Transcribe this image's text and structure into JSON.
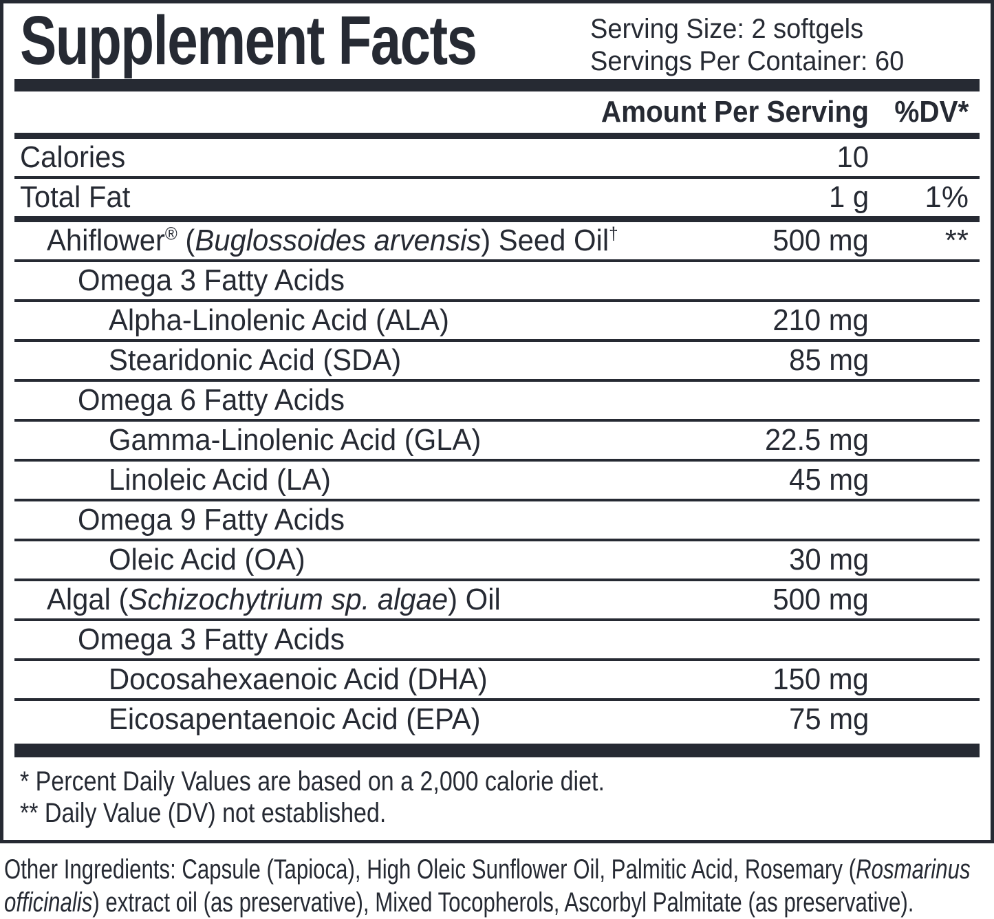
{
  "header": {
    "title": "Supplement Facts",
    "serving_size": "Serving Size: 2 softgels",
    "servings_per_container": "Servings Per Container: 60"
  },
  "columns": {
    "amount": "Amount Per Serving",
    "dv": "%DV*"
  },
  "rows": [
    {
      "indent": 0,
      "sep": "medium",
      "label": [
        {
          "t": "Calories"
        }
      ],
      "amount": "10",
      "dv": ""
    },
    {
      "indent": 0,
      "sep": "thin",
      "label": [
        {
          "t": "Total Fat"
        }
      ],
      "amount": "1 g",
      "dv": "1%"
    },
    {
      "indent": 1,
      "sep": "medium",
      "label": [
        {
          "t": "Ahiflower"
        },
        {
          "t": "®",
          "s": "sup"
        },
        {
          "t": " ("
        },
        {
          "t": "Buglossoides arvensis",
          "s": "i"
        },
        {
          "t": ") Seed Oil"
        },
        {
          "t": "†",
          "s": "sup"
        }
      ],
      "amount": "500 mg",
      "dv": "**"
    },
    {
      "indent": 2,
      "sep": "thin",
      "label": [
        {
          "t": "Omega 3 Fatty Acids"
        }
      ],
      "amount": "",
      "dv": ""
    },
    {
      "indent": 3,
      "sep": "thin",
      "label": [
        {
          "t": "Alpha-Linolenic Acid (ALA)"
        }
      ],
      "amount": "210 mg",
      "dv": ""
    },
    {
      "indent": 3,
      "sep": "thin",
      "label": [
        {
          "t": "Stearidonic Acid (SDA)"
        }
      ],
      "amount": "85 mg",
      "dv": ""
    },
    {
      "indent": 2,
      "sep": "thin",
      "label": [
        {
          "t": "Omega 6 Fatty Acids"
        }
      ],
      "amount": "",
      "dv": ""
    },
    {
      "indent": 3,
      "sep": "thin",
      "label": [
        {
          "t": "Gamma-Linolenic Acid (GLA)"
        }
      ],
      "amount": "22.5 mg",
      "dv": ""
    },
    {
      "indent": 3,
      "sep": "thin",
      "label": [
        {
          "t": "Linoleic Acid (LA)"
        }
      ],
      "amount": "45 mg",
      "dv": ""
    },
    {
      "indent": 2,
      "sep": "thin",
      "label": [
        {
          "t": "Omega 9 Fatty Acids"
        }
      ],
      "amount": "",
      "dv": ""
    },
    {
      "indent": 3,
      "sep": "thin",
      "label": [
        {
          "t": "Oleic Acid (OA)"
        }
      ],
      "amount": "30 mg",
      "dv": ""
    },
    {
      "indent": 1,
      "sep": "thin",
      "label": [
        {
          "t": "Algal ("
        },
        {
          "t": "Schizochytrium sp. algae",
          "s": "i"
        },
        {
          "t": ") Oil"
        }
      ],
      "amount": "500 mg",
      "dv": ""
    },
    {
      "indent": 2,
      "sep": "thin",
      "label": [
        {
          "t": "Omega 3 Fatty Acids"
        }
      ],
      "amount": "",
      "dv": ""
    },
    {
      "indent": 3,
      "sep": "thin",
      "label": [
        {
          "t": "Docosahexaenoic Acid (DHA)"
        }
      ],
      "amount": "150 mg",
      "dv": ""
    },
    {
      "indent": 3,
      "sep": "thin",
      "label": [
        {
          "t": "Eicosapentaenoic Acid (EPA)"
        }
      ],
      "amount": "75 mg",
      "dv": ""
    }
  ],
  "footnotes": [
    "* Percent Daily Values are based on a 2,000 calorie diet.",
    "** Daily Value (DV) not established."
  ],
  "other_ingredients": {
    "lines": [
      [
        {
          "t": "Other Ingredients: Capsule (Tapioca), High Oleic Sunflower Oil, Palmitic Acid, Rosemary ("
        },
        {
          "t": "Rosmarinus",
          "s": "i"
        }
      ],
      [
        {
          "t": "officinalis",
          "s": "i"
        },
        {
          "t": ") extract oil (as preservative), Mixed Tocopherols, Ascorbyl Palmitate (as preservative)."
        }
      ]
    ]
  },
  "colors": {
    "ink": "#262a33",
    "background": "#ffffff"
  }
}
